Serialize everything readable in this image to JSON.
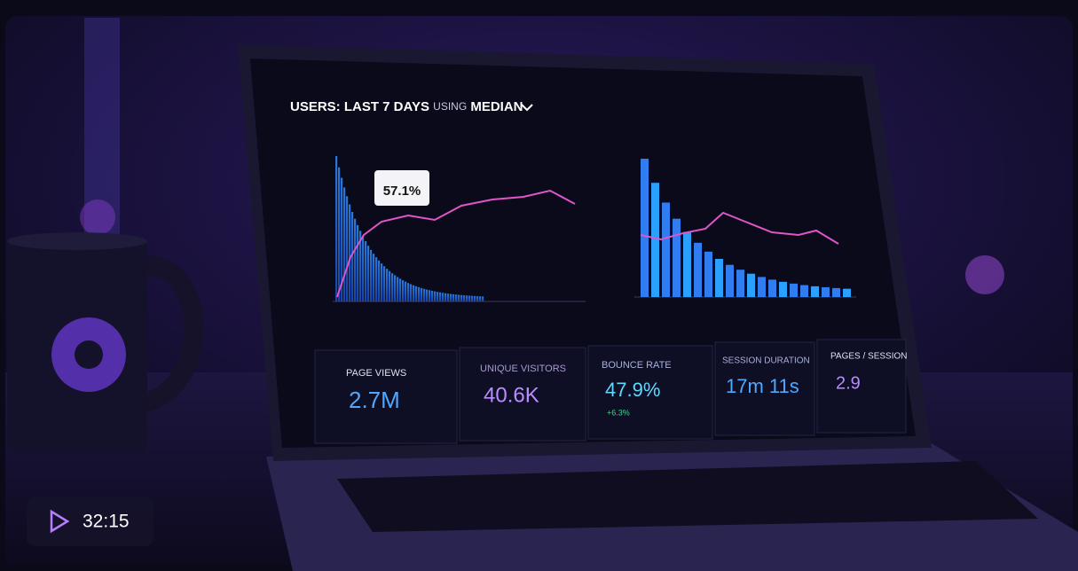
{
  "video": {
    "duration": "32:15"
  },
  "screen": {
    "header": {
      "title": "USERS: LAST 7 DAYS",
      "using": "USING",
      "metric": "MEDIAN"
    },
    "tooltip": "57.1%",
    "kpis": [
      {
        "label": "PAGE VIEWS",
        "value": "2.7M"
      },
      {
        "label": "UNIQUE VISITORS",
        "value": "40.6K"
      },
      {
        "label": "BOUNCE RATE",
        "value": "47.9%",
        "change": "+6.3%"
      },
      {
        "label": "SESSION DURATION",
        "value": "17m 11s"
      },
      {
        "label": "PAGES / SESSION",
        "value": "2.9"
      }
    ]
  }
}
